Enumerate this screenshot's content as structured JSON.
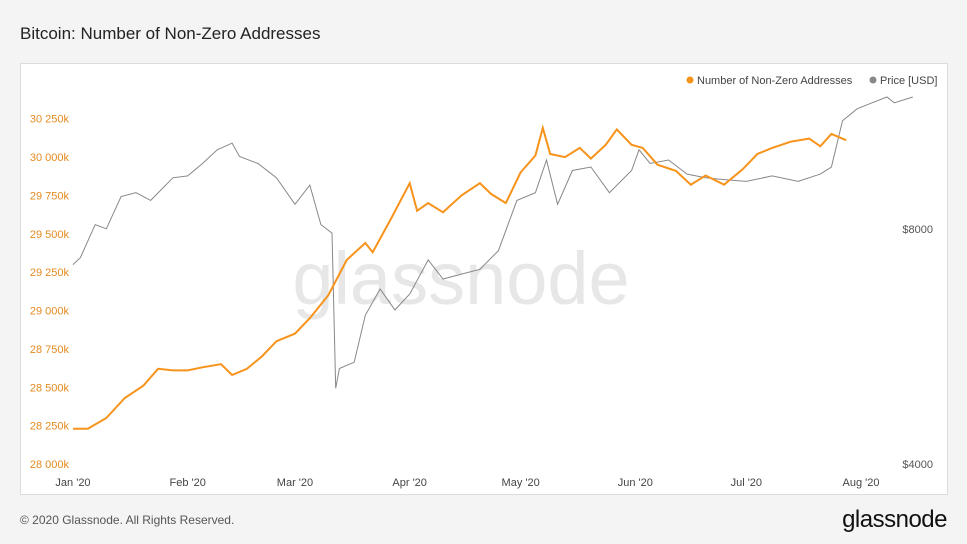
{
  "title": "Bitcoin: Number of Non-Zero Addresses",
  "footer": {
    "copyright": "© 2020 Glassnode. All Rights Reserved.",
    "logo": "glassnode"
  },
  "watermark": "glassnode",
  "colors": {
    "addresses": "#f7931a",
    "price": "#888888"
  },
  "chart_data": {
    "type": "line",
    "title": "Bitcoin: Number of Non-Zero Addresses",
    "legend_position": "top-right",
    "grid": false,
    "x_tick_labels": [
      "Jan '20",
      "Feb '20",
      "Mar '20",
      "Apr '20",
      "May '20",
      "Jun '20",
      "Jul '20",
      "Aug '20"
    ],
    "y_left": {
      "ylim": [
        28000,
        30450
      ],
      "ticks": [
        28000,
        28250,
        28500,
        28750,
        29000,
        29250,
        29500,
        29750,
        30000,
        30250
      ],
      "tick_labels": [
        "28 000k",
        "28 250k",
        "28 500k",
        "28 750k",
        "29 000k",
        "29 250k",
        "29 500k",
        "29 750k",
        "30 000k",
        "30 250k"
      ]
    },
    "y_right": {
      "scale": "log",
      "ticks": [
        4000,
        8000
      ],
      "tick_labels": [
        "$4000",
        "$8000"
      ]
    },
    "series": [
      {
        "name": "Number of Non-Zero Addresses",
        "axis": "left",
        "points": [
          [
            "2020-01-01",
            28230
          ],
          [
            "2020-01-05",
            28230
          ],
          [
            "2020-01-10",
            28300
          ],
          [
            "2020-01-15",
            28430
          ],
          [
            "2020-01-20",
            28510
          ],
          [
            "2020-01-24",
            28620
          ],
          [
            "2020-01-28",
            28610
          ],
          [
            "2020-02-01",
            28610
          ],
          [
            "2020-02-05",
            28630
          ],
          [
            "2020-02-10",
            28650
          ],
          [
            "2020-02-13",
            28580
          ],
          [
            "2020-02-17",
            28620
          ],
          [
            "2020-02-21",
            28700
          ],
          [
            "2020-02-25",
            28800
          ],
          [
            "2020-03-01",
            28850
          ],
          [
            "2020-03-05",
            28950
          ],
          [
            "2020-03-10",
            29100
          ],
          [
            "2020-03-15",
            29330
          ],
          [
            "2020-03-20",
            29440
          ],
          [
            "2020-03-22",
            29380
          ],
          [
            "2020-03-27",
            29600
          ],
          [
            "2020-04-01",
            29830
          ],
          [
            "2020-04-03",
            29650
          ],
          [
            "2020-04-06",
            29700
          ],
          [
            "2020-04-10",
            29640
          ],
          [
            "2020-04-15",
            29750
          ],
          [
            "2020-04-20",
            29830
          ],
          [
            "2020-04-23",
            29760
          ],
          [
            "2020-04-27",
            29700
          ],
          [
            "2020-05-01",
            29900
          ],
          [
            "2020-05-05",
            30010
          ],
          [
            "2020-05-07",
            30190
          ],
          [
            "2020-05-09",
            30020
          ],
          [
            "2020-05-13",
            30000
          ],
          [
            "2020-05-17",
            30060
          ],
          [
            "2020-05-20",
            29990
          ],
          [
            "2020-05-24",
            30080
          ],
          [
            "2020-05-27",
            30180
          ],
          [
            "2020-05-31",
            30080
          ],
          [
            "2020-06-03",
            30060
          ],
          [
            "2020-06-07",
            29950
          ],
          [
            "2020-06-12",
            29910
          ],
          [
            "2020-06-16",
            29820
          ],
          [
            "2020-06-20",
            29880
          ],
          [
            "2020-06-25",
            29820
          ],
          [
            "2020-06-30",
            29920
          ],
          [
            "2020-07-04",
            30020
          ],
          [
            "2020-07-08",
            30060
          ],
          [
            "2020-07-13",
            30100
          ],
          [
            "2020-07-18",
            30120
          ],
          [
            "2020-07-21",
            30070
          ],
          [
            "2020-07-24",
            30150
          ],
          [
            "2020-07-28",
            30110
          ]
        ]
      },
      {
        "name": "Price [USD]",
        "axis": "right",
        "points": [
          [
            "2020-01-01",
            7200
          ],
          [
            "2020-01-03",
            7350
          ],
          [
            "2020-01-07",
            8100
          ],
          [
            "2020-01-10",
            8000
          ],
          [
            "2020-01-14",
            8800
          ],
          [
            "2020-01-18",
            8900
          ],
          [
            "2020-01-22",
            8700
          ],
          [
            "2020-01-28",
            9300
          ],
          [
            "2020-02-01",
            9350
          ],
          [
            "2020-02-05",
            9700
          ],
          [
            "2020-02-09",
            10100
          ],
          [
            "2020-02-13",
            10300
          ],
          [
            "2020-02-15",
            9900
          ],
          [
            "2020-02-20",
            9700
          ],
          [
            "2020-02-25",
            9300
          ],
          [
            "2020-03-01",
            8600
          ],
          [
            "2020-03-05",
            9100
          ],
          [
            "2020-03-08",
            8100
          ],
          [
            "2020-03-11",
            7900
          ],
          [
            "2020-03-12",
            5000
          ],
          [
            "2020-03-13",
            5300
          ],
          [
            "2020-03-17",
            5400
          ],
          [
            "2020-03-20",
            6200
          ],
          [
            "2020-03-24",
            6700
          ],
          [
            "2020-03-28",
            6300
          ],
          [
            "2020-04-01",
            6600
          ],
          [
            "2020-04-06",
            7300
          ],
          [
            "2020-04-10",
            6900
          ],
          [
            "2020-04-15",
            7000
          ],
          [
            "2020-04-20",
            7100
          ],
          [
            "2020-04-25",
            7500
          ],
          [
            "2020-04-30",
            8700
          ],
          [
            "2020-05-05",
            8900
          ],
          [
            "2020-05-08",
            9800
          ],
          [
            "2020-05-11",
            8600
          ],
          [
            "2020-05-15",
            9500
          ],
          [
            "2020-05-20",
            9600
          ],
          [
            "2020-05-25",
            8900
          ],
          [
            "2020-05-31",
            9500
          ],
          [
            "2020-06-02",
            10100
          ],
          [
            "2020-06-05",
            9700
          ],
          [
            "2020-06-10",
            9800
          ],
          [
            "2020-06-15",
            9400
          ],
          [
            "2020-06-20",
            9300
          ],
          [
            "2020-06-25",
            9250
          ],
          [
            "2020-07-01",
            9200
          ],
          [
            "2020-07-08",
            9350
          ],
          [
            "2020-07-15",
            9200
          ],
          [
            "2020-07-21",
            9400
          ],
          [
            "2020-07-24",
            9600
          ],
          [
            "2020-07-27",
            11000
          ],
          [
            "2020-07-31",
            11400
          ],
          [
            "2020-08-04",
            11600
          ],
          [
            "2020-08-08",
            11800
          ],
          [
            "2020-08-10",
            11600
          ],
          [
            "2020-08-15",
            11800
          ]
        ]
      }
    ]
  }
}
